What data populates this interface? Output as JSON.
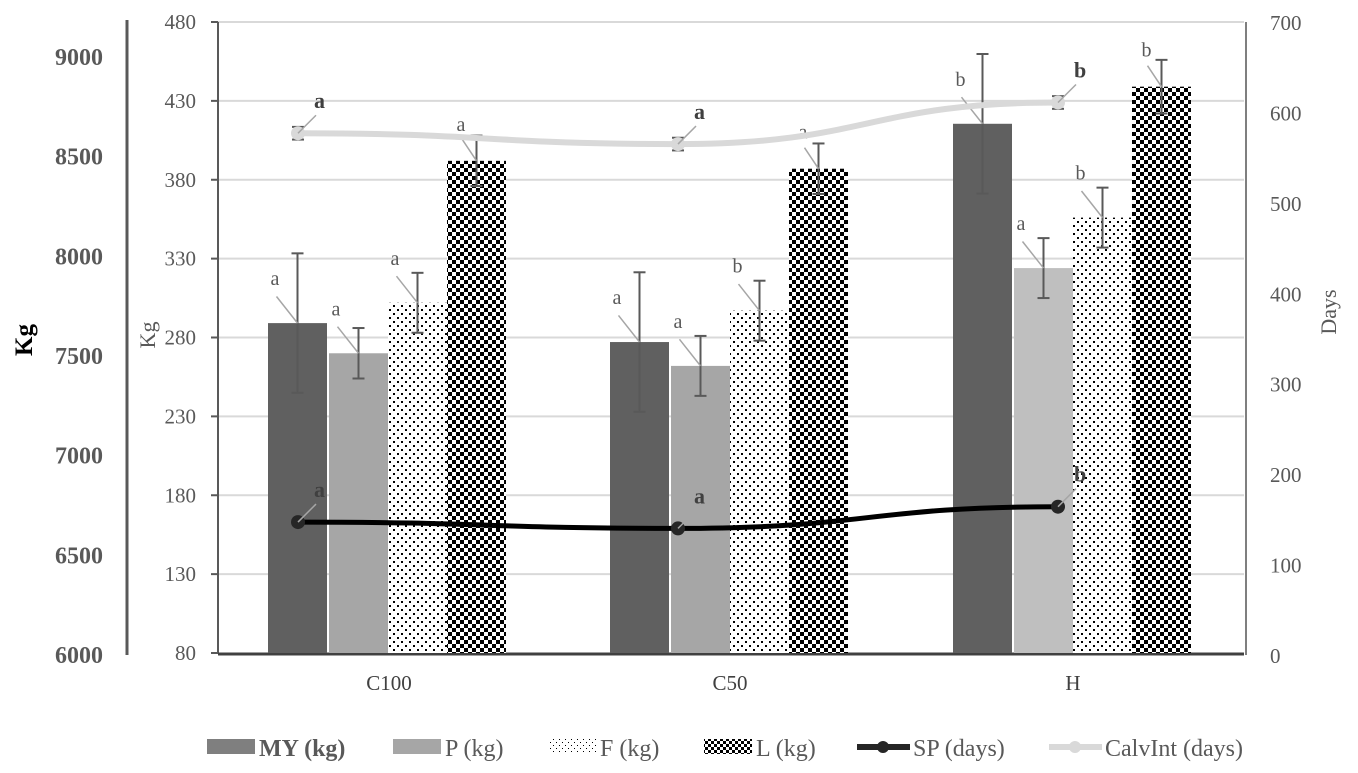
{
  "chart_data": {
    "type": "bar",
    "title": "",
    "xlabel": "",
    "categories": [
      "C100",
      "C50",
      "H"
    ],
    "axes": {
      "outer_left": {
        "label": "Kg",
        "range": [
          6000,
          9000
        ],
        "ticks": [
          6000,
          6500,
          7000,
          7500,
          8000,
          8500,
          9000
        ],
        "series": [
          "MY (kg)"
        ]
      },
      "inner_left": {
        "label": "Kg",
        "range": [
          80,
          480
        ],
        "ticks": [
          80,
          130,
          180,
          230,
          280,
          330,
          380,
          430,
          480
        ],
        "series": [
          "P (kg)",
          "F (kg)",
          "L (kg)"
        ]
      },
      "right": {
        "label": "Days",
        "range": [
          0,
          700
        ],
        "ticks": [
          0,
          100,
          200,
          300,
          400,
          500,
          600,
          700
        ],
        "series": [
          "SP (days)",
          "CalvInt (days)"
        ]
      }
    },
    "grid": true,
    "legend_position": "bottom",
    "bar_series": [
      {
        "name": "MY (kg)",
        "axis": "outer_left",
        "values": [
          7665,
          7570,
          8665
        ],
        "errors": [
          350,
          350,
          350
        ],
        "letters": [
          "a",
          "a",
          "b"
        ],
        "color": "#606060",
        "pattern": "solid",
        "bold_label": true
      },
      {
        "name": "P (kg)",
        "axis": "inner_left",
        "values": [
          270,
          262,
          324
        ],
        "errors": [
          16,
          19,
          19
        ],
        "letters": [
          "a",
          "a",
          "a"
        ],
        "color": "#a6a6a6",
        "pattern": "solid",
        "bold_label": false
      },
      {
        "name": "F (kg)",
        "axis": "inner_left",
        "values": [
          302,
          297,
          356
        ],
        "errors": [
          19,
          19,
          19
        ],
        "letters": [
          "a",
          "b",
          "b"
        ],
        "color": "#000000",
        "pattern": "dots",
        "bold_label": false
      },
      {
        "name": "L (kg)",
        "axis": "inner_left",
        "values": [
          392,
          387,
          439
        ],
        "errors": [
          16,
          16,
          17
        ],
        "letters": [
          "a",
          "a",
          "b"
        ],
        "color": "#000000",
        "pattern": "checker",
        "bold_label": false
      }
    ],
    "line_series": [
      {
        "name": "SP (days)",
        "axis": "right",
        "values": [
          147,
          140,
          164
        ],
        "errors": [
          0,
          0,
          0
        ],
        "letters": [
          "a",
          "a",
          "b"
        ],
        "color": "#000000"
      },
      {
        "name": "CalvInt (days)",
        "axis": "right",
        "values": [
          577,
          565,
          611
        ],
        "errors": [
          7,
          7,
          7
        ],
        "letters": [
          "a",
          "a",
          "b"
        ],
        "color": "#d9d9d9"
      }
    ]
  }
}
